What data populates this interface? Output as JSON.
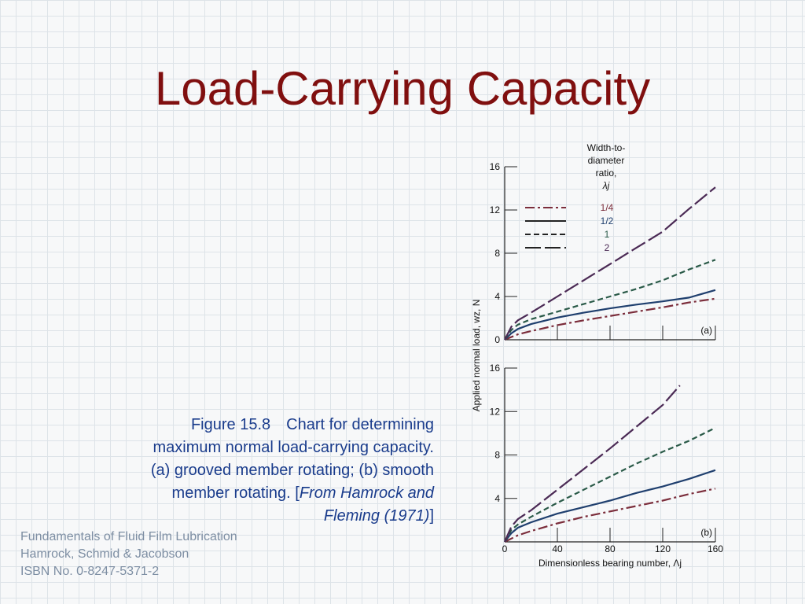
{
  "slide": {
    "title": "Load-Carrying Capacity"
  },
  "caption": {
    "figure_number": "Figure 15.8",
    "text_line1": "Chart for determining",
    "text_line2": "maximum normal load-carrying capacity.",
    "text_line3": "(a) grooved member rotating; (b) smooth",
    "text_line4": "member rotating.  [",
    "source_italic_1": "From Hamrock and",
    "source_italic_2": "Fleming (1971)",
    "source_close": "]"
  },
  "footer": {
    "line1": "Fundamentals of Fluid Film Lubrication",
    "line2": "Hamrock, Schmid & Jacobson",
    "line3": "ISBN No. 0-8247-5371-2"
  },
  "colors": {
    "title": "#800f0f",
    "caption": "#1a3c8c",
    "footer": "#7d8ea3",
    "axis": "#222222",
    "series_1_4": "#7b2d3b",
    "series_1_2": "#1f3f6e",
    "series_1": "#2a5a48",
    "series_2": "#4b2a55"
  },
  "chart_data": {
    "type": "line",
    "ylabel": "Applied normal load,  wz,  N",
    "xlabel": "Dimensionless bearing number,  Λj",
    "xlim": [
      0,
      160
    ],
    "ylim": [
      0,
      16
    ],
    "x_ticks": [
      "0",
      "40",
      "80",
      "120",
      "160"
    ],
    "y_ticks": [
      "0",
      "4",
      "8",
      "12",
      "16"
    ],
    "legend": {
      "title_lines": [
        "Width-to-",
        "diameter",
        "ratio,",
        "λj"
      ],
      "placement": "top-left, inside panel (a)"
    },
    "series_defs": [
      {
        "name": "1/4",
        "dash": "dash-dot",
        "color": "#7b2d3b"
      },
      {
        "name": "1/2",
        "dash": "solid",
        "color": "#1f3f6e"
      },
      {
        "name": "1",
        "dash": "short-dash",
        "color": "#2a5a48"
      },
      {
        "name": "2",
        "dash": "long-dash",
        "color": "#4b2a55"
      }
    ],
    "panels": [
      {
        "label": "(a)",
        "series": [
          {
            "name": "1/4",
            "x": [
              0,
              10,
              20,
              40,
              60,
              80,
              100,
              120,
              140,
              160
            ],
            "y": [
              0,
              0.5,
              0.8,
              1.35,
              1.8,
              2.2,
              2.6,
              3.0,
              3.45,
              3.8
            ]
          },
          {
            "name": "1/2",
            "x": [
              0,
              5,
              10,
              20,
              40,
              60,
              80,
              100,
              120,
              140,
              160
            ],
            "y": [
              0,
              0.6,
              1.0,
              1.45,
              2.05,
              2.5,
              2.9,
              3.25,
              3.55,
              3.9,
              4.6
            ]
          },
          {
            "name": "1",
            "x": [
              0,
              5,
              10,
              20,
              40,
              60,
              80,
              100,
              120,
              140,
              160
            ],
            "y": [
              0,
              0.9,
              1.4,
              1.9,
              2.6,
              3.3,
              4.0,
              4.7,
              5.5,
              6.5,
              7.4
            ]
          },
          {
            "name": "2",
            "x": [
              0,
              5,
              10,
              20,
              40,
              60,
              80,
              100,
              120,
              140,
              160
            ],
            "y": [
              0,
              1.2,
              1.8,
              2.5,
              4.0,
              5.5,
              7.0,
              8.5,
              10.0,
              12.1,
              14.1
            ]
          }
        ]
      },
      {
        "label": "(b)",
        "series": [
          {
            "name": "1/4",
            "x": [
              0,
              10,
              20,
              40,
              60,
              80,
              100,
              120,
              140,
              160
            ],
            "y": [
              0,
              0.6,
              1.0,
              1.7,
              2.3,
              2.8,
              3.3,
              3.8,
              4.4,
              4.9
            ]
          },
          {
            "name": "1/2",
            "x": [
              0,
              5,
              10,
              20,
              40,
              60,
              80,
              100,
              120,
              140,
              160
            ],
            "y": [
              0,
              0.8,
              1.3,
              1.8,
              2.6,
              3.2,
              3.8,
              4.5,
              5.1,
              5.8,
              6.6
            ]
          },
          {
            "name": "1",
            "x": [
              0,
              5,
              10,
              20,
              40,
              60,
              80,
              100,
              120,
              140,
              160
            ],
            "y": [
              0,
              1.1,
              1.6,
              2.3,
              3.6,
              4.8,
              6.0,
              7.2,
              8.3,
              9.3,
              10.5
            ]
          },
          {
            "name": "2",
            "x": [
              0,
              5,
              10,
              20,
              40,
              60,
              80,
              100,
              120,
              133
            ],
            "y": [
              0,
              1.4,
              2.1,
              2.9,
              4.8,
              6.7,
              8.6,
              10.6,
              12.6,
              14.4
            ]
          }
        ]
      }
    ]
  }
}
